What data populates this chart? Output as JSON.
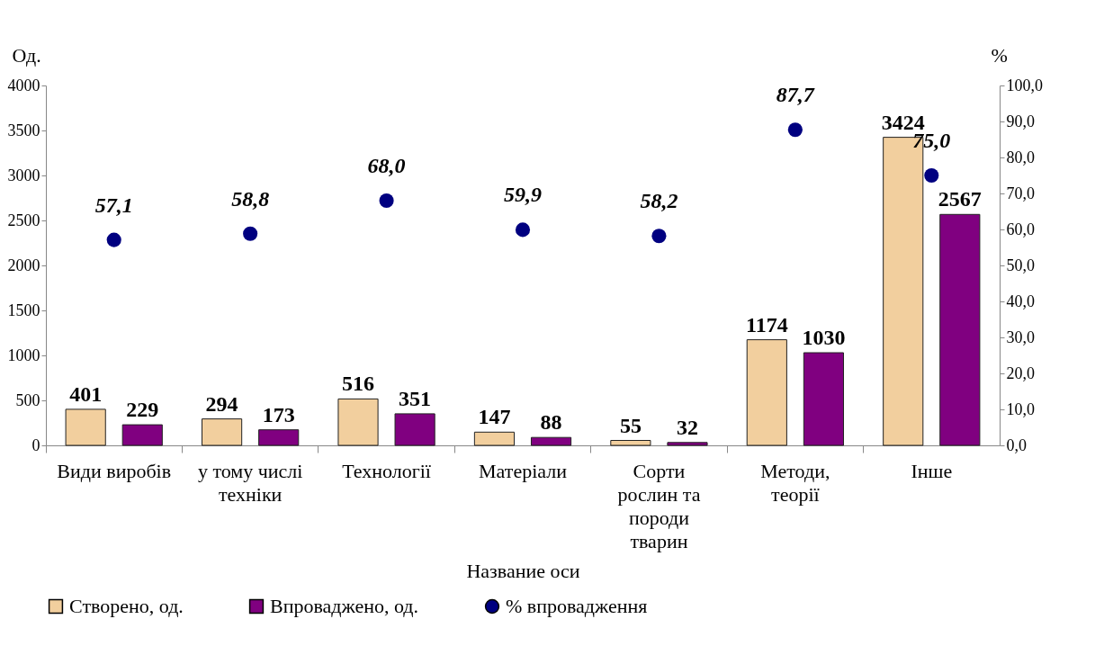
{
  "chart_data": {
    "type": "bar",
    "categories": [
      "Види виробів",
      "у тому числі\nтехніки",
      "Технології",
      "Матеріали",
      "Сорти\nрослин та\nпороди\nтварин",
      "Методи,\nтеорії",
      "Інше"
    ],
    "xlabel": "Название оси",
    "ylabel": "Од.",
    "y2label": "%",
    "series": [
      {
        "name": "Створено, од.",
        "type": "bar",
        "color": "#f2cf9e",
        "values": [
          401,
          294,
          516,
          147,
          55,
          1174,
          3424
        ],
        "value_labels": [
          "401",
          "294",
          "516",
          "147",
          "55",
          "1174",
          "3424"
        ]
      },
      {
        "name": "Впроваджено, од.",
        "type": "bar",
        "color": "#800080",
        "values": [
          229,
          173,
          351,
          88,
          32,
          1030,
          2567
        ],
        "value_labels": [
          "229",
          "173",
          "351",
          "88",
          "32",
          "1030",
          "2567"
        ]
      },
      {
        "name": "% впровадження",
        "type": "scatter",
        "axis": "y2",
        "color": "#000080",
        "values": [
          57.1,
          58.8,
          68.0,
          59.9,
          58.2,
          87.7,
          75.0
        ],
        "value_labels": [
          "57,1",
          "58,8",
          "68,0",
          "59,9",
          "58,2",
          "87,7",
          "75,0"
        ]
      }
    ],
    "ylim": [
      0,
      4000
    ],
    "yticks": [
      0,
      500,
      1000,
      1500,
      2000,
      2500,
      3000,
      3500,
      4000
    ],
    "y2lim": [
      0,
      100
    ],
    "y2ticks": [
      {
        "value": 0,
        "label": "0,0"
      },
      {
        "value": 10,
        "label": "10,0"
      },
      {
        "value": 20,
        "label": "20,0"
      },
      {
        "value": 30,
        "label": "30,0"
      },
      {
        "value": 40,
        "label": "40,0"
      },
      {
        "value": 50,
        "label": "50,0"
      },
      {
        "value": 60,
        "label": "60,0"
      },
      {
        "value": 70,
        "label": "70,0"
      },
      {
        "value": 80,
        "label": "80,0"
      },
      {
        "value": 90,
        "label": "90,0"
      },
      {
        "value": 100,
        "label": "100,0"
      }
    ],
    "legend": "bottom",
    "grid": false,
    "marker": "circle"
  }
}
